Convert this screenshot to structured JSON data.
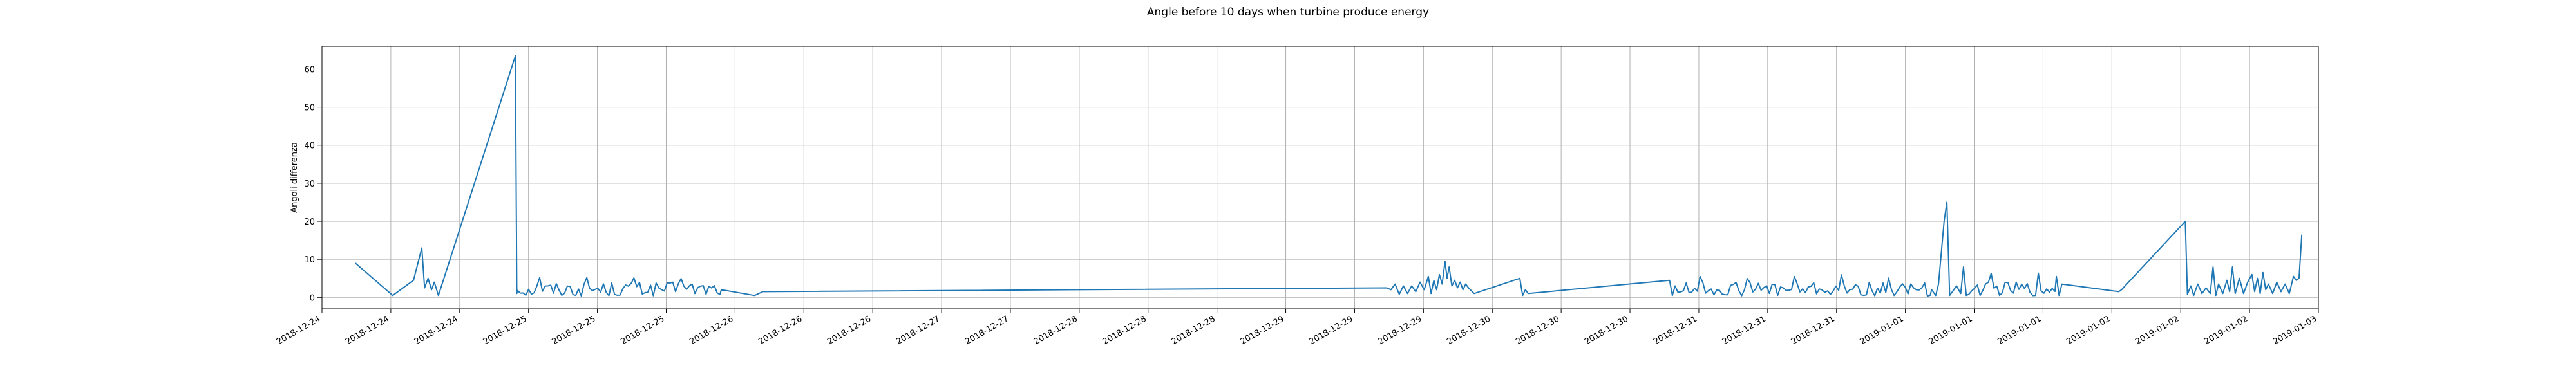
{
  "chart_data": {
    "type": "line",
    "title": "Angle before 10 days when turbine produce energy",
    "xlabel": "",
    "ylabel": "Angoli differenza",
    "ylim": [
      -3,
      66
    ],
    "yticks": [
      0,
      10,
      20,
      30,
      40,
      50,
      60
    ],
    "xlim": [
      "2018-12-24T00:00",
      "2019-01-03T00:00"
    ],
    "xtick_labels": [
      "2018-12-24",
      "2018-12-24",
      "2018-12-24",
      "2018-12-25",
      "2018-12-25",
      "2018-12-25",
      "2018-12-26",
      "2018-12-26",
      "2018-12-26",
      "2018-12-27",
      "2018-12-27",
      "2018-12-28",
      "2018-12-28",
      "2018-12-28",
      "2018-12-29",
      "2018-12-29",
      "2018-12-29",
      "2018-12-30",
      "2018-12-30",
      "2018-12-30",
      "2018-12-31",
      "2018-12-31",
      "2018-12-31",
      "2019-01-01",
      "2019-01-01",
      "2019-01-01",
      "2019-01-02",
      "2019-01-02",
      "2019-01-02",
      "2019-01-03"
    ],
    "grid": true,
    "series": [
      {
        "color": "#1f77b4",
        "points": [
          [
            "2018-12-24T04:00",
            9.0
          ],
          [
            "2018-12-24T08:30",
            0.5
          ],
          [
            "2018-12-24T11:00",
            4.5
          ],
          [
            "2018-12-24T12:00",
            13.0
          ],
          [
            "2018-12-24T12:20",
            2.5
          ],
          [
            "2018-12-24T12:45",
            5.0
          ],
          [
            "2018-12-24T13:10",
            2.0
          ],
          [
            "2018-12-24T13:30",
            4.0
          ],
          [
            "2018-12-24T14:00",
            0.5
          ],
          [
            "2018-12-24T23:15",
            63.5
          ],
          [
            "2018-12-24T23:25",
            1.0
          ],
          [
            "2018-12-26T00:00",
            2.0
          ],
          [
            "2018-12-26T04:00",
            0.5
          ],
          [
            "2018-12-26T05:00",
            1.5
          ],
          [
            "2018-12-29T08:00",
            2.5
          ],
          [
            "2018-12-29T08:30",
            2.0
          ],
          [
            "2018-12-29T09:00",
            3.5
          ],
          [
            "2018-12-29T09:30",
            0.8
          ],
          [
            "2018-12-29T10:00",
            3.0
          ],
          [
            "2018-12-29T10:30",
            1.0
          ],
          [
            "2018-12-29T11:00",
            3.0
          ],
          [
            "2018-12-29T11:30",
            1.5
          ],
          [
            "2018-12-29T12:00",
            4.0
          ],
          [
            "2018-12-29T12:30",
            2.0
          ],
          [
            "2018-12-29T13:00",
            5.5
          ],
          [
            "2018-12-29T13:20",
            1.0
          ],
          [
            "2018-12-29T13:40",
            4.5
          ],
          [
            "2018-12-29T14:00",
            2.0
          ],
          [
            "2018-12-29T14:20",
            6.0
          ],
          [
            "2018-12-29T14:40",
            3.5
          ],
          [
            "2018-12-29T15:00",
            9.5
          ],
          [
            "2018-12-29T15:15",
            5.0
          ],
          [
            "2018-12-29T15:30",
            8.0
          ],
          [
            "2018-12-29T15:50",
            3.0
          ],
          [
            "2018-12-29T16:10",
            4.5
          ],
          [
            "2018-12-29T16:30",
            2.5
          ],
          [
            "2018-12-29T16:50",
            4.0
          ],
          [
            "2018-12-29T17:10",
            2.0
          ],
          [
            "2018-12-29T17:30",
            3.5
          ],
          [
            "2018-12-29T17:50",
            2.5
          ],
          [
            "2018-12-29T18:30",
            1.0
          ],
          [
            "2018-12-30T00:00",
            5.0
          ],
          [
            "2018-12-30T00:20",
            0.5
          ],
          [
            "2018-12-30T00:40",
            2.0
          ],
          [
            "2018-12-30T01:00",
            1.0
          ],
          [
            "2018-12-30T18:00",
            4.5
          ],
          [
            "2018-12-30T18:20",
            0.5
          ],
          [
            "2018-12-30T18:40",
            3.0
          ],
          [
            "2019-01-01T01:30",
            2.0
          ],
          [
            "2019-01-01T02:00",
            0.5
          ],
          [
            "2019-01-01T02:20",
            3.5
          ],
          [
            "2019-01-01T03:00",
            20.0
          ],
          [
            "2019-01-01T03:20",
            25.0
          ],
          [
            "2019-01-01T03:40",
            0.5
          ],
          [
            "2019-01-01T04:30",
            3.0
          ],
          [
            "2019-01-01T05:00",
            1.0
          ],
          [
            "2019-01-01T05:20",
            8.0
          ],
          [
            "2019-01-01T05:40",
            0.5
          ],
          [
            "2019-01-01T16:30",
            5.5
          ],
          [
            "2019-01-01T16:50",
            0.5
          ],
          [
            "2019-01-01T17:10",
            3.5
          ],
          [
            "2019-01-02T00:00",
            1.5
          ],
          [
            "2019-01-02T00:20",
            2.0
          ],
          [
            "2019-01-02T08:00",
            20.0
          ],
          [
            "2019-01-02T08:15",
            0.8
          ],
          [
            "2019-01-02T08:40",
            3.0
          ],
          [
            "2019-01-02T09:00",
            0.5
          ],
          [
            "2019-01-02T09:30",
            3.5
          ],
          [
            "2019-01-02T10:00",
            1.0
          ],
          [
            "2019-01-02T10:30",
            2.5
          ],
          [
            "2019-01-02T11:00",
            1.0
          ],
          [
            "2019-01-02T11:20",
            8.0
          ],
          [
            "2019-01-02T11:40",
            0.5
          ],
          [
            "2019-01-02T12:00",
            3.5
          ],
          [
            "2019-01-02T12:30",
            1.0
          ],
          [
            "2019-01-02T13:00",
            4.5
          ],
          [
            "2019-01-02T13:20",
            1.5
          ],
          [
            "2019-01-02T13:40",
            8.0
          ],
          [
            "2019-01-02T14:00",
            1.0
          ],
          [
            "2019-01-02T14:30",
            5.0
          ],
          [
            "2019-01-02T15:00",
            1.0
          ],
          [
            "2019-01-02T15:30",
            4.0
          ],
          [
            "2019-01-02T16:00",
            6.0
          ],
          [
            "2019-01-02T16:20",
            1.5
          ],
          [
            "2019-01-02T16:40",
            5.0
          ],
          [
            "2019-01-02T17:00",
            1.0
          ],
          [
            "2019-01-02T17:20",
            6.5
          ],
          [
            "2019-01-02T17:40",
            2.0
          ],
          [
            "2019-01-02T18:00",
            3.5
          ],
          [
            "2019-01-02T18:30",
            1.0
          ],
          [
            "2019-01-02T19:00",
            4.0
          ],
          [
            "2019-01-02T19:30",
            1.5
          ],
          [
            "2019-01-02T20:00",
            3.5
          ],
          [
            "2019-01-02T20:30",
            1.0
          ],
          [
            "2019-01-02T21:00",
            5.5
          ],
          [
            "2019-01-02T21:20",
            4.5
          ],
          [
            "2019-01-02T21:40",
            5.0
          ],
          [
            "2019-01-02T22:00",
            16.5
          ]
        ],
        "noisy_segments": [
          {
            "start": "2018-12-24T23:30",
            "end": "2018-12-25T23:55",
            "low": 0.3,
            "high": 4.0,
            "spike": 6.0,
            "step_minutes": 20
          },
          {
            "start": "2018-12-30T19:00",
            "end": "2019-01-01T01:20",
            "low": 0.3,
            "high": 4.0,
            "spike": 6.0,
            "step_minutes": 20
          },
          {
            "start": "2019-01-01T06:00",
            "end": "2019-01-01T16:20",
            "low": 0.3,
            "high": 4.0,
            "spike": 6.5,
            "step_minutes": 20
          }
        ]
      }
    ]
  }
}
